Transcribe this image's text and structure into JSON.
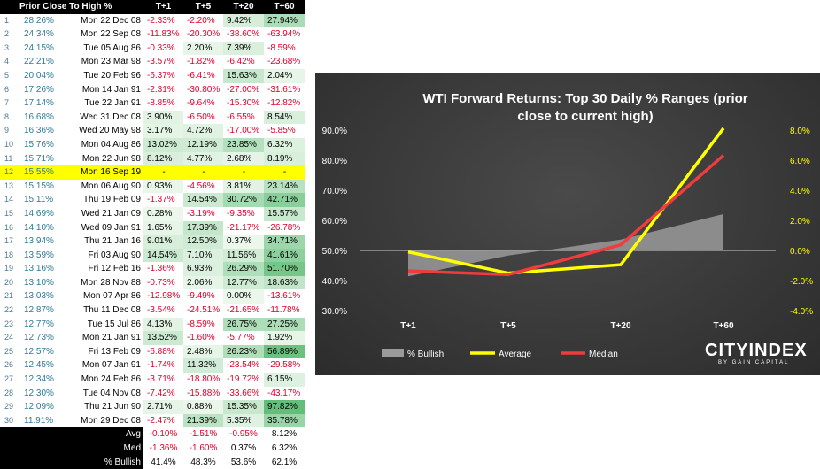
{
  "table": {
    "headers": [
      "Prior Close To High %",
      "T+1",
      "T+5",
      "T+20",
      "T+60"
    ],
    "rows": [
      {
        "n": "1",
        "pct": "28.26%",
        "date": "Mon 22 Dec 08",
        "t1": "-2.33%",
        "t5": "-2.20%",
        "t20": "9.42%",
        "t60": "27.94%"
      },
      {
        "n": "2",
        "pct": "24.34%",
        "date": "Mon 22 Sep 08",
        "t1": "-11.83%",
        "t5": "-20.30%",
        "t20": "-38.60%",
        "t60": "-63.94%"
      },
      {
        "n": "3",
        "pct": "24.15%",
        "date": "Tue 05 Aug 86",
        "t1": "-0.33%",
        "t5": "2.20%",
        "t20": "7.39%",
        "t60": "-8.59%"
      },
      {
        "n": "4",
        "pct": "22.21%",
        "date": "Mon 23 Mar 98",
        "t1": "-3.57%",
        "t5": "-1.82%",
        "t20": "-6.42%",
        "t60": "-23.68%"
      },
      {
        "n": "5",
        "pct": "20.04%",
        "date": "Tue 20 Feb 96",
        "t1": "-6.37%",
        "t5": "-6.41%",
        "t20": "15.63%",
        "t60": "2.04%"
      },
      {
        "n": "6",
        "pct": "17.26%",
        "date": "Mon 14 Jan 91",
        "t1": "-2.31%",
        "t5": "-30.80%",
        "t20": "-27.00%",
        "t60": "-31.61%"
      },
      {
        "n": "7",
        "pct": "17.14%",
        "date": "Tue 22 Jan 91",
        "t1": "-8.85%",
        "t5": "-9.64%",
        "t20": "-15.30%",
        "t60": "-12.82%"
      },
      {
        "n": "8",
        "pct": "16.68%",
        "date": "Wed 31 Dec 08",
        "t1": "3.90%",
        "t5": "-6.50%",
        "t20": "-6.55%",
        "t60": "8.54%"
      },
      {
        "n": "9",
        "pct": "16.36%",
        "date": "Wed 20 May 98",
        "t1": "3.17%",
        "t5": "4.72%",
        "t20": "-17.00%",
        "t60": "-5.85%"
      },
      {
        "n": "10",
        "pct": "15.76%",
        "date": "Mon 04 Aug 86",
        "t1": "13.02%",
        "t5": "12.19%",
        "t20": "23.85%",
        "t60": "6.32%"
      },
      {
        "n": "11",
        "pct": "15.71%",
        "date": "Mon 22 Jun 98",
        "t1": "8.12%",
        "t5": "4.77%",
        "t20": "2.68%",
        "t60": "8.19%"
      },
      {
        "n": "12",
        "pct": "15.55%",
        "date": "Mon 16 Sep 19",
        "t1": "-",
        "t5": "-",
        "t20": "-",
        "t60": "-",
        "hl": true
      },
      {
        "n": "13",
        "pct": "15.15%",
        "date": "Mon 06 Aug 90",
        "t1": "0.93%",
        "t5": "-4.56%",
        "t20": "3.81%",
        "t60": "23.14%"
      },
      {
        "n": "14",
        "pct": "15.11%",
        "date": "Thu 19 Feb 09",
        "t1": "-1.37%",
        "t5": "14.54%",
        "t20": "30.72%",
        "t60": "42.71%"
      },
      {
        "n": "15",
        "pct": "14.69%",
        "date": "Wed 21 Jan 09",
        "t1": "0.28%",
        "t5": "-3.19%",
        "t20": "-9.35%",
        "t60": "15.57%"
      },
      {
        "n": "16",
        "pct": "14.10%",
        "date": "Wed 09 Jan 91",
        "t1": "1.65%",
        "t5": "17.39%",
        "t20": "-21.17%",
        "t60": "-26.78%"
      },
      {
        "n": "17",
        "pct": "13.94%",
        "date": "Thu 21 Jan 16",
        "t1": "9.01%",
        "t5": "12.50%",
        "t20": "0.37%",
        "t60": "34.71%"
      },
      {
        "n": "18",
        "pct": "13.59%",
        "date": "Fri 03 Aug 90",
        "t1": "14.54%",
        "t5": "7.10%",
        "t20": "11.56%",
        "t60": "41.61%"
      },
      {
        "n": "19",
        "pct": "13.16%",
        "date": "Fri 12 Feb 16",
        "t1": "-1.36%",
        "t5": "6.93%",
        "t20": "26.29%",
        "t60": "51.70%"
      },
      {
        "n": "20",
        "pct": "13.10%",
        "date": "Mon 28 Nov 88",
        "t1": "-0.73%",
        "t5": "2.06%",
        "t20": "12.77%",
        "t60": "18.63%"
      },
      {
        "n": "21",
        "pct": "13.03%",
        "date": "Mon 07 Apr 86",
        "t1": "-12.98%",
        "t5": "-9.49%",
        "t20": "0.00%",
        "t60": "-13.61%"
      },
      {
        "n": "22",
        "pct": "12.87%",
        "date": "Thu 11 Dec 08",
        "t1": "-3.54%",
        "t5": "-24.51%",
        "t20": "-21.65%",
        "t60": "-11.78%"
      },
      {
        "n": "23",
        "pct": "12.77%",
        "date": "Tue 15 Jul 86",
        "t1": "4.13%",
        "t5": "-8.59%",
        "t20": "26.75%",
        "t60": "27.25%"
      },
      {
        "n": "24",
        "pct": "12.73%",
        "date": "Mon 21 Jan 91",
        "t1": "13.52%",
        "t5": "-1.60%",
        "t20": "-5.77%",
        "t60": "1.92%"
      },
      {
        "n": "25",
        "pct": "12.57%",
        "date": "Fri 13 Feb 09",
        "t1": "-6.88%",
        "t5": "2.48%",
        "t20": "26.23%",
        "t60": "56.89%"
      },
      {
        "n": "26",
        "pct": "12.45%",
        "date": "Mon 07 Jan 91",
        "t1": "-1.74%",
        "t5": "11.32%",
        "t20": "-23.54%",
        "t60": "-29.58%"
      },
      {
        "n": "27",
        "pct": "12.34%",
        "date": "Mon 24 Feb 86",
        "t1": "-3.71%",
        "t5": "-18.80%",
        "t20": "-19.72%",
        "t60": "6.15%"
      },
      {
        "n": "28",
        "pct": "12.30%",
        "date": "Tue 04 Nov 08",
        "t1": "-7.42%",
        "t5": "-15.88%",
        "t20": "-33.66%",
        "t60": "-43.17%"
      },
      {
        "n": "29",
        "pct": "12.09%",
        "date": "Thu 21 Jun 90",
        "t1": "2.71%",
        "t5": "0.88%",
        "t20": "15.35%",
        "t60": "97.82%"
      },
      {
        "n": "30",
        "pct": "11.91%",
        "date": "Mon 29 Dec 08",
        "t1": "-2.47%",
        "t5": "21.39%",
        "t20": "5.35%",
        "t60": "35.78%"
      }
    ],
    "footer": [
      {
        "label": "Avg",
        "t1": "-0.10%",
        "t5": "-1.51%",
        "t20": "-0.95%",
        "t60": "8.12%"
      },
      {
        "label": "Med",
        "t1": "-1.36%",
        "t5": "-1.60%",
        "t20": "0.37%",
        "t60": "6.32%"
      },
      {
        "label": "% Bullish",
        "t1": "41.4%",
        "t5": "48.3%",
        "t20": "53.6%",
        "t60": "62.1%"
      }
    ]
  },
  "chart_data": {
    "type": "line",
    "title": "WTI Forward Returns: Top 30 Daily % Ranges (prior close to current high)",
    "categories": [
      "T+1",
      "T+5",
      "T+20",
      "T+60"
    ],
    "y_left": {
      "ticks": [
        "30.0%",
        "40.0%",
        "50.0%",
        "60.0%",
        "70.0%",
        "80.0%",
        "90.0%"
      ],
      "range": [
        30,
        90
      ]
    },
    "y_right": {
      "ticks": [
        "-4.0%",
        "-2.0%",
        "0.0%",
        "2.0%",
        "4.0%",
        "6.0%",
        "8.0%"
      ],
      "range": [
        -4,
        8
      ]
    },
    "series": [
      {
        "name": "% Bullish",
        "kind": "area",
        "axis": "left",
        "color": "#9a9a9a",
        "values": [
          41.4,
          48.3,
          53.6,
          62.1
        ]
      },
      {
        "name": "Average",
        "kind": "line",
        "axis": "right",
        "color": "#ffff00",
        "values": [
          -0.1,
          -1.51,
          -0.95,
          8.12
        ]
      },
      {
        "name": "Median",
        "kind": "line",
        "axis": "right",
        "color": "#ef3c3c",
        "values": [
          -1.36,
          -1.6,
          0.37,
          6.32
        ]
      }
    ],
    "legend_position": "bottom-left",
    "grid": false
  },
  "brand": {
    "name": "CITYINDEX",
    "tagline": "BY GAIN CAPITAL"
  },
  "colors": {
    "negative": "#e0002a",
    "highlight": "#ffff00",
    "header_bg": "#000000",
    "chart_bg": "#3a3a3a"
  }
}
